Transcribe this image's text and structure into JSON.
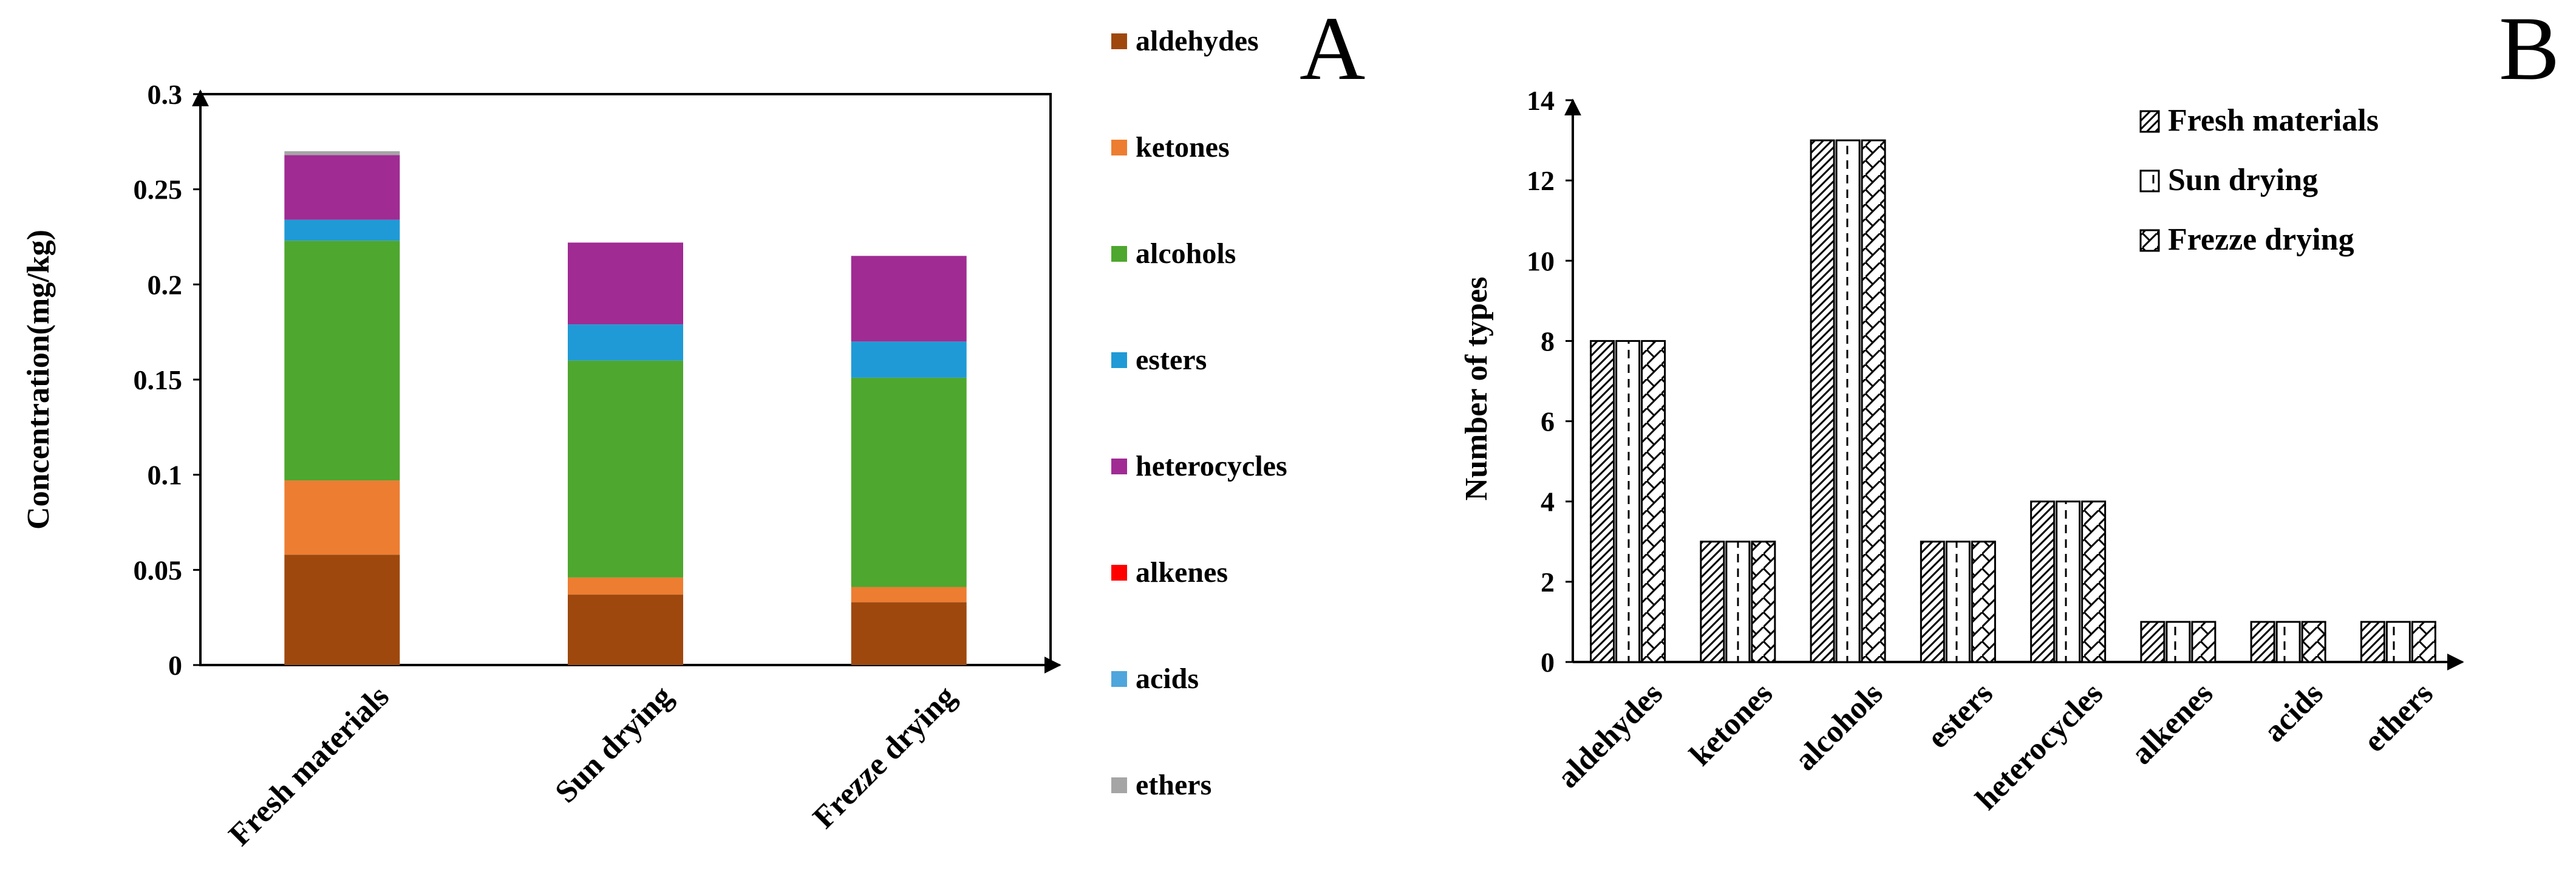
{
  "chart_data": [
    {
      "panel_label": "A",
      "type": "bar",
      "stacked": true,
      "ylabel": "Concentration(mg/kg)",
      "xlabel": "",
      "ylim": [
        0,
        0.3
      ],
      "yticks": [
        "0",
        "0.05",
        "0.1",
        "0.15",
        "0.2",
        "0.25",
        "0.3"
      ],
      "categories": [
        "Fresh materials",
        "Sun drying",
        "Frezze drying"
      ],
      "series": [
        {
          "name": "aldehydes",
          "color": "#9E480E",
          "values": [
            0.058,
            0.037,
            0.033
          ]
        },
        {
          "name": "ketones",
          "color": "#ED7D31",
          "values": [
            0.039,
            0.009,
            0.008
          ]
        },
        {
          "name": "alcohols",
          "color": "#4EA72E",
          "values": [
            0.126,
            0.114,
            0.11
          ]
        },
        {
          "name": "esters",
          "color": "#1F9AD6",
          "values": [
            0.011,
            0.019,
            0.019
          ]
        },
        {
          "name": "heterocycles",
          "color": "#A02B93",
          "values": [
            0.034,
            0.043,
            0.045
          ]
        },
        {
          "name": "alkenes",
          "color": "#FF0000",
          "values": [
            0,
            0,
            0
          ]
        },
        {
          "name": "acids",
          "color": "#4EA6DC",
          "values": [
            0,
            0,
            0
          ]
        },
        {
          "name": "ethers",
          "color": "#A5A5A5",
          "values": [
            0.002,
            0,
            0
          ]
        }
      ],
      "legend": "right"
    },
    {
      "panel_label": "B",
      "type": "bar",
      "stacked": false,
      "ylabel": "Number of types",
      "xlabel": "",
      "ylim": [
        0,
        14
      ],
      "yticks": [
        "0",
        "2",
        "4",
        "6",
        "8",
        "10",
        "12",
        "14"
      ],
      "categories": [
        "aldehydes",
        "ketones",
        "alcohols",
        "esters",
        "heterocycles",
        "alkenes",
        "acids",
        "ethers"
      ],
      "series": [
        {
          "name": "Fresh materials",
          "pattern": "diagonal",
          "values": [
            8,
            3,
            13,
            3,
            4,
            1,
            1,
            1
          ]
        },
        {
          "name": "Sun drying",
          "pattern": "dashed-vertical",
          "values": [
            8,
            3,
            13,
            3,
            4,
            1,
            1,
            1
          ]
        },
        {
          "name": "Frezze drying",
          "pattern": "zigzag",
          "values": [
            8,
            3,
            13,
            3,
            4,
            1,
            1,
            1
          ]
        }
      ],
      "legend": "top-right"
    }
  ]
}
